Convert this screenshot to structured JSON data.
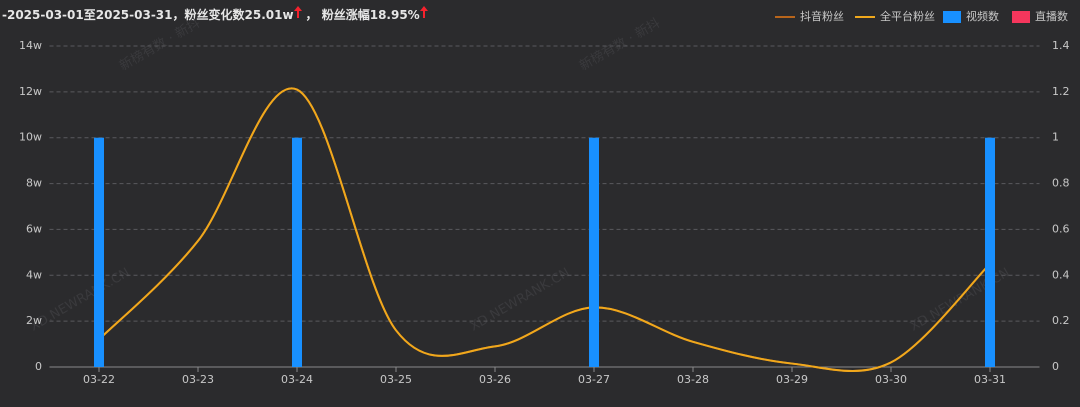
{
  "header": {
    "range": "-2025-03-01至2025-03-31，粉丝变化数25.01w",
    "growth": "， 粉丝涨幅18.95%"
  },
  "watermarks": [
    "新榜有数 · 新抖",
    "XD.NEWRANK.CN"
  ],
  "chart_data": {
    "type": "combo",
    "categories": [
      "03-22",
      "03-23",
      "03-24",
      "03-25",
      "03-26",
      "03-27",
      "03-28",
      "03-29",
      "03-30",
      "03-31"
    ],
    "series": [
      {
        "name": "抖音粉丝",
        "type": "line",
        "color": "#b8651b",
        "values": [
          1.2,
          5.5,
          12.1,
          1.6,
          0.9,
          2.6,
          1.1,
          0.15,
          0.2,
          4.5
        ]
      },
      {
        "name": "全平台粉丝",
        "type": "line",
        "color": "#f0a81c",
        "values": [
          1.2,
          5.5,
          12.1,
          1.6,
          0.9,
          2.6,
          1.1,
          0.15,
          0.2,
          4.5
        ]
      },
      {
        "name": "视频数",
        "type": "bar",
        "axis": "y2",
        "color": "#1890ff",
        "values": [
          1,
          0,
          1,
          0,
          0,
          1,
          0,
          0,
          0,
          1
        ]
      },
      {
        "name": "直播数",
        "type": "bar",
        "axis": "y2",
        "color": "#f5365c",
        "values": [
          0,
          0,
          0,
          0,
          0,
          0,
          0,
          0,
          0,
          0
        ]
      }
    ],
    "ylim": [
      0,
      14
    ],
    "yticks": [
      0,
      {
        "value": 2,
        "label": "2w"
      },
      {
        "value": 4,
        "label": "4w"
      },
      {
        "value": 6,
        "label": "6w"
      },
      {
        "value": 8,
        "label": "8w"
      },
      {
        "value": 10,
        "label": "10w"
      },
      {
        "value": 12,
        "label": "12w"
      },
      {
        "value": 14,
        "label": "14w"
      }
    ],
    "y2lim": [
      0,
      1.4
    ],
    "y2ticks": [
      0,
      0.2,
      0.4,
      0.6,
      0.8,
      1,
      1.2,
      1.4
    ],
    "grid": true
  }
}
